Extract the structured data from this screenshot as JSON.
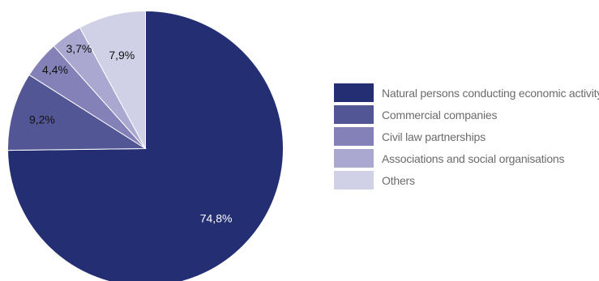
{
  "chart_data": {
    "type": "pie",
    "title": "",
    "categories": [
      "Natural persons conducting economic activity",
      "Commercial companies",
      "Civil law partnerships",
      "Associations and social organisations",
      "Others"
    ],
    "values": [
      74.8,
      9.2,
      4.4,
      3.7,
      7.9
    ],
    "value_labels": [
      "74,8%",
      "9,2%",
      "4,4%",
      "3,7%",
      "7,9%"
    ],
    "colors": [
      "#232e73",
      "#535694",
      "#8381b7",
      "#aaa8d1",
      "#d0d0e6"
    ],
    "label_colors": [
      "#ffffff",
      "#111111",
      "#111111",
      "#111111",
      "#111111"
    ],
    "start": "12 o'clock",
    "direction": "clockwise",
    "legend_position": "right"
  },
  "legend": [
    {
      "label": "Natural persons conducting economic activity",
      "color": "#232e73"
    },
    {
      "label": "Commercial companies",
      "color": "#535694"
    },
    {
      "label": "Civil law partnerships",
      "color": "#8381b7"
    },
    {
      "label": "Associations and social organisations",
      "color": "#aaa8d1"
    },
    {
      "label": "Others",
      "color": "#d0d0e6"
    }
  ]
}
